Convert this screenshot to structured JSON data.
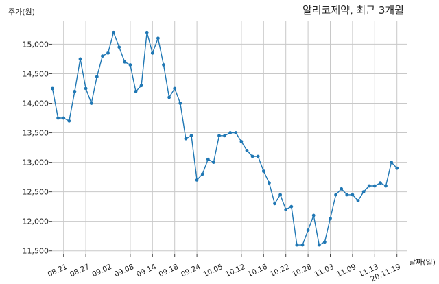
{
  "chart_data": {
    "type": "line",
    "title": "알리코제약, 최근 3개월",
    "ylabel": "주가(원)",
    "xlabel": "날짜(일)",
    "ylim": [
      11450,
      15400
    ],
    "y_ticks": [
      11500,
      12000,
      12500,
      13000,
      13500,
      14000,
      14500,
      15000
    ],
    "y_tick_labels": [
      "11,500",
      "12,000",
      "12,500",
      "13,000",
      "13,500",
      "14,000",
      "14,500",
      "15,000"
    ],
    "x_tick_labels": [
      "08.21",
      "08.27",
      "09.02",
      "09.08",
      "09.14",
      "09.18",
      "09.24",
      "10.05",
      "10.12",
      "10.16",
      "10.22",
      "10.28",
      "11.03",
      "11.09",
      "11.13",
      "20.11.19"
    ],
    "x_tick_index": [
      2,
      6,
      10,
      14,
      18,
      22,
      26,
      30,
      34,
      38,
      42,
      46,
      50,
      54,
      58,
      62
    ],
    "grid": true,
    "line_color": "#1f77b4",
    "series": [
      {
        "name": "",
        "values": [
          14250,
          13750,
          13750,
          13700,
          14200,
          14750,
          14250,
          14000,
          14450,
          14800,
          14850,
          15200,
          14950,
          14700,
          14650,
          14200,
          14300,
          15200,
          14850,
          15100,
          14650,
          14100,
          14250,
          14000,
          13400,
          13450,
          12700,
          12800,
          13050,
          13000,
          13450,
          13450,
          13500,
          13500,
          13350,
          13200,
          13100,
          13100,
          12850,
          12650,
          12300,
          12450,
          12200,
          12250,
          11600,
          11600,
          11850,
          12100,
          11600,
          11650,
          12050,
          12450,
          12550,
          12450,
          12450,
          12350,
          12500,
          12600,
          12600,
          12650,
          12600,
          13000,
          12900
        ]
      }
    ]
  }
}
